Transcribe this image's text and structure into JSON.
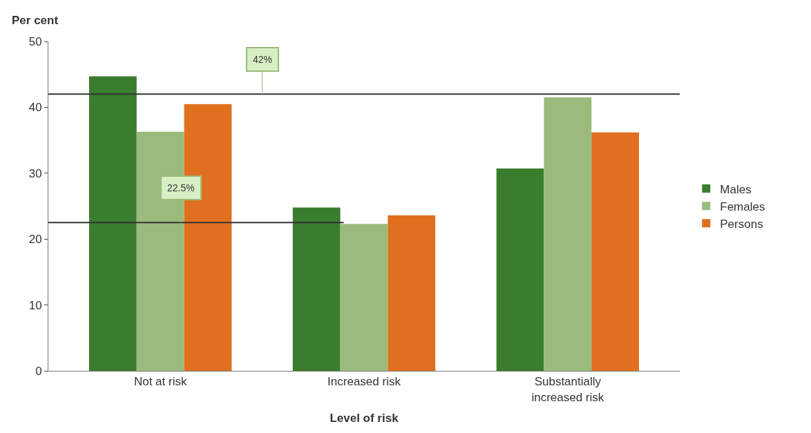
{
  "chart_data": {
    "type": "bar",
    "xlabel": "Level of risk",
    "ylabel": "Per cent",
    "categories": [
      "Not at risk",
      "Increased risk",
      "Substantially\nincreased risk"
    ],
    "series": [
      {
        "name": "Males",
        "color": "#3a7d2e",
        "values": [
          44.7,
          24.8,
          30.7
        ]
      },
      {
        "name": "Females",
        "color": "#9bbb7c",
        "values": [
          36.3,
          22.3,
          41.5
        ]
      },
      {
        "name": "Persons",
        "color": "#e0701f",
        "values": [
          40.5,
          23.6,
          36.2
        ]
      }
    ],
    "ylim": [
      0,
      50
    ],
    "yticks": [
      0,
      10,
      20,
      30,
      40,
      50
    ],
    "grid": false,
    "legend": "right",
    "ref_lines": [
      {
        "axis": "y",
        "value": 42,
        "label": "42%",
        "color": "#333333"
      },
      {
        "axis": "y",
        "value": 22.5,
        "label": "22.5%",
        "color": "#333333"
      }
    ]
  }
}
